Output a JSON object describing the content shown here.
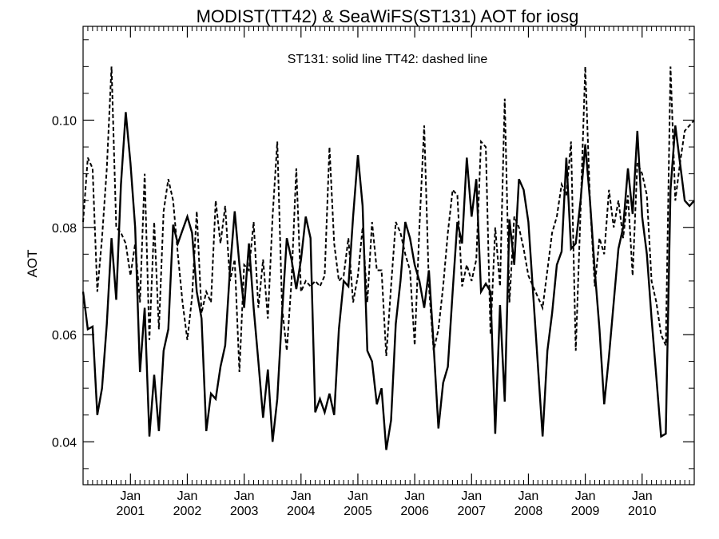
{
  "chart_data": {
    "type": "line",
    "title": "MODIST(TT42) & SeaWiFS(ST131)  AOT for iosg",
    "annotation": "ST131: solid line   TT42: dashed line",
    "xlabel": "",
    "ylabel": "AOT",
    "xlim": [
      "2000-03",
      "2010-12"
    ],
    "ylim": [
      0.032,
      0.1175
    ],
    "yticks": [
      0.04,
      0.06,
      0.08,
      0.1
    ],
    "ytick_labels": [
      "0.04",
      "0.06",
      "0.08",
      "0.10"
    ],
    "x_month_labels": [
      "Jan",
      "Jan",
      "Jan",
      "Jan",
      "Jan",
      "Jan",
      "Jan",
      "Jan",
      "Jan",
      "Jan"
    ],
    "x_year_labels": [
      "2001",
      "2002",
      "2003",
      "2004",
      "2005",
      "2006",
      "2007",
      "2008",
      "2009",
      "2010"
    ],
    "x_year_ticks": [
      "2001-01",
      "2002-01",
      "2003-01",
      "2004-01",
      "2005-01",
      "2006-01",
      "2007-01",
      "2008-01",
      "2009-01",
      "2010-01"
    ],
    "grid": false,
    "series": [
      {
        "label": "ST131",
        "style": "solid",
        "x": [
          "2000-03",
          "2000-04",
          "2000-05",
          "2000-06",
          "2000-07",
          "2000-08",
          "2000-09",
          "2000-10",
          "2000-11",
          "2000-12",
          "2001-01",
          "2001-02",
          "2001-03",
          "2001-04",
          "2001-05",
          "2001-06",
          "2001-07",
          "2001-08",
          "2001-09",
          "2001-10",
          "2001-11",
          "2001-12",
          "2002-01",
          "2002-02",
          "2002-03",
          "2002-04",
          "2002-05",
          "2002-06",
          "2002-07",
          "2002-08",
          "2002-09",
          "2002-10",
          "2002-11",
          "2002-12",
          "2003-01",
          "2003-02",
          "2003-03",
          "2003-04",
          "2003-05",
          "2003-06",
          "2003-07",
          "2003-08",
          "2003-09",
          "2003-10",
          "2003-11",
          "2003-12",
          "2004-01",
          "2004-02",
          "2004-03",
          "2004-04",
          "2004-05",
          "2004-06",
          "2004-07",
          "2004-08",
          "2004-09",
          "2004-10",
          "2004-11",
          "2004-12",
          "2005-01",
          "2005-02",
          "2005-03",
          "2005-04",
          "2005-05",
          "2005-06",
          "2005-07",
          "2005-08",
          "2005-09",
          "2005-10",
          "2005-11",
          "2005-12",
          "2006-01",
          "2006-02",
          "2006-03",
          "2006-04",
          "2006-05",
          "2006-06",
          "2006-07",
          "2006-08",
          "2006-09",
          "2006-10",
          "2006-11",
          "2006-12",
          "2007-01",
          "2007-02",
          "2007-03",
          "2007-04",
          "2007-05",
          "2007-06",
          "2007-07",
          "2007-08",
          "2007-09",
          "2007-10",
          "2007-11",
          "2007-12",
          "2008-01",
          "2008-04",
          "2008-05",
          "2008-06",
          "2008-07",
          "2008-08",
          "2008-09",
          "2008-10",
          "2008-11",
          "2008-12",
          "2009-01",
          "2009-02",
          "2009-03",
          "2009-04",
          "2009-05",
          "2009-06",
          "2009-07",
          "2009-08",
          "2009-09",
          "2009-10",
          "2009-11",
          "2009-12",
          "2010-01",
          "2010-02",
          "2010-03",
          "2010-04",
          "2010-05",
          "2010-06",
          "2010-07",
          "2010-08",
          "2010-09",
          "2010-10",
          "2010-11",
          "2010-12"
        ],
        "y": [
          0.068,
          0.061,
          0.0615,
          0.045,
          0.05,
          0.062,
          0.078,
          0.0665,
          0.088,
          0.1015,
          0.092,
          0.08,
          0.053,
          0.065,
          0.041,
          0.0525,
          0.042,
          0.057,
          0.061,
          0.0805,
          0.077,
          0.0795,
          0.082,
          0.079,
          0.068,
          0.063,
          0.042,
          0.049,
          0.048,
          0.054,
          0.058,
          0.072,
          0.083,
          0.073,
          0.065,
          0.077,
          0.065,
          0.055,
          0.0445,
          0.0535,
          0.04,
          0.048,
          0.064,
          0.078,
          0.074,
          0.0685,
          0.074,
          0.082,
          0.078,
          0.0455,
          0.048,
          0.0455,
          0.049,
          0.045,
          0.061,
          0.07,
          0.069,
          0.082,
          0.0935,
          0.084,
          0.057,
          0.055,
          0.047,
          0.05,
          0.0385,
          0.044,
          0.062,
          0.07,
          0.081,
          0.078,
          0.073,
          0.07,
          0.065,
          0.072,
          0.058,
          0.0425,
          0.051,
          0.054,
          0.068,
          0.081,
          0.077,
          0.093,
          0.082,
          0.089,
          0.068,
          0.0695,
          0.068,
          0.0415,
          0.0655,
          0.0475,
          0.0815,
          0.073,
          0.089,
          0.087,
          0.081,
          0.041,
          0.057,
          0.064,
          0.073,
          0.0755,
          0.093,
          0.076,
          0.077,
          0.085,
          0.0955,
          0.085,
          0.072,
          0.061,
          0.047,
          0.056,
          0.066,
          0.076,
          0.08,
          0.091,
          0.0825,
          0.098,
          0.082,
          0.075,
          0.063,
          0.052,
          0.041,
          0.0415,
          0.087,
          0.099,
          0.092,
          0.085,
          0.084,
          0.085
        ]
      },
      {
        "label": "TT42",
        "style": "dashed",
        "x": [
          "2000-03",
          "2000-04",
          "2000-05",
          "2000-06",
          "2000-07",
          "2000-08",
          "2000-09",
          "2000-10",
          "2000-11",
          "2000-12",
          "2001-01",
          "2001-02",
          "2001-03",
          "2001-04",
          "2001-05",
          "2001-06",
          "2001-07",
          "2001-08",
          "2001-09",
          "2001-10",
          "2001-11",
          "2001-12",
          "2002-01",
          "2002-02",
          "2002-03",
          "2002-04",
          "2002-05",
          "2002-06",
          "2002-07",
          "2002-08",
          "2002-09",
          "2002-10",
          "2002-11",
          "2002-12",
          "2003-01",
          "2003-02",
          "2003-03",
          "2003-04",
          "2003-05",
          "2003-06",
          "2003-07",
          "2003-08",
          "2003-09",
          "2003-10",
          "2003-11",
          "2003-12",
          "2004-01",
          "2004-02",
          "2004-03",
          "2004-04",
          "2004-05",
          "2004-06",
          "2004-07",
          "2004-08",
          "2004-09",
          "2004-10",
          "2004-11",
          "2004-12",
          "2005-01",
          "2005-02",
          "2005-03",
          "2005-04",
          "2005-05",
          "2005-06",
          "2005-07",
          "2005-08",
          "2005-09",
          "2005-10",
          "2005-11",
          "2005-12",
          "2006-01",
          "2006-02",
          "2006-03",
          "2006-04",
          "2006-05",
          "2006-06",
          "2006-07",
          "2006-08",
          "2006-09",
          "2006-10",
          "2006-11",
          "2006-12",
          "2007-01",
          "2007-02",
          "2007-03",
          "2007-04",
          "2007-05",
          "2007-06",
          "2007-07",
          "2007-08",
          "2007-09",
          "2007-10",
          "2007-11",
          "2007-12",
          "2008-01",
          "2008-04",
          "2008-05",
          "2008-06",
          "2008-07",
          "2008-08",
          "2008-09",
          "2008-10",
          "2008-11",
          "2008-12",
          "2009-01",
          "2009-02",
          "2009-03",
          "2009-04",
          "2009-05",
          "2009-06",
          "2009-07",
          "2009-08",
          "2009-09",
          "2009-10",
          "2009-11",
          "2009-12",
          "2010-01",
          "2010-02",
          "2010-03",
          "2010-04",
          "2010-05",
          "2010-06",
          "2010-07",
          "2010-08",
          "2010-09",
          "2010-10",
          "2010-11",
          "2010-12"
        ],
        "y": [
          0.081,
          0.093,
          0.091,
          0.068,
          0.078,
          0.091,
          0.11,
          0.08,
          0.079,
          0.077,
          0.071,
          0.077,
          0.066,
          0.09,
          0.059,
          0.081,
          0.061,
          0.083,
          0.089,
          0.085,
          0.075,
          0.066,
          0.059,
          0.067,
          0.083,
          0.064,
          0.068,
          0.066,
          0.085,
          0.077,
          0.084,
          0.07,
          0.074,
          0.053,
          0.073,
          0.072,
          0.081,
          0.065,
          0.074,
          0.063,
          0.082,
          0.096,
          0.065,
          0.057,
          0.07,
          0.091,
          0.068,
          0.07,
          0.069,
          0.07,
          0.069,
          0.071,
          0.095,
          0.077,
          0.07,
          0.071,
          0.078,
          0.066,
          0.071,
          0.08,
          0.066,
          0.081,
          0.072,
          0.072,
          0.056,
          0.069,
          0.081,
          0.079,
          0.075,
          0.072,
          0.058,
          0.08,
          0.099,
          0.069,
          0.057,
          0.061,
          0.069,
          0.079,
          0.087,
          0.086,
          0.069,
          0.073,
          0.07,
          0.074,
          0.096,
          0.095,
          0.06,
          0.08,
          0.069,
          0.104,
          0.066,
          0.082,
          0.08,
          0.076,
          0.071,
          0.065,
          0.072,
          0.079,
          0.082,
          0.088,
          0.086,
          0.096,
          0.057,
          0.083,
          0.11,
          0.085,
          0.069,
          0.078,
          0.075,
          0.087,
          0.08,
          0.085,
          0.078,
          0.086,
          0.071,
          0.092,
          0.09,
          0.086,
          0.07,
          0.066,
          0.06,
          0.058,
          0.11,
          0.085,
          0.092,
          0.098,
          0.099,
          0.1
        ]
      }
    ]
  }
}
